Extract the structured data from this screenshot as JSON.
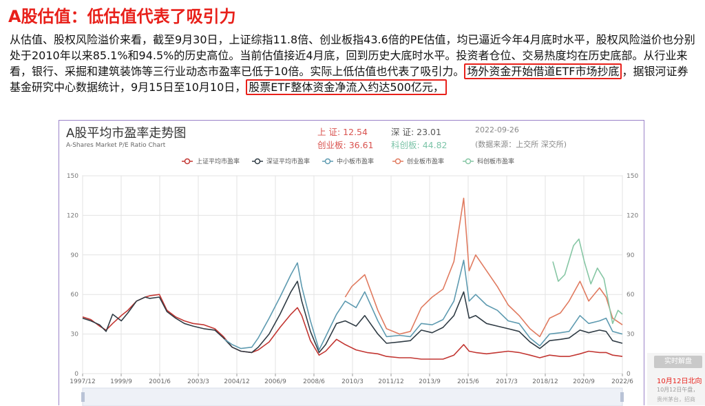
{
  "slide": {
    "title": "A股估值：低估值代表了吸引力",
    "para_a": "从估值、股权风险溢价来看，截至9月30日，上证综指11.8倍、创业板指43.6倍的PE估值，均已逼近今年4月底时水平，股权风险溢价也分别处于2010年以来85.1%和94.5%的历史高位。当前估值接近4月底，回到历史大底时水平。投资者仓位、交易热度均在历史底部。从行业来看，银行、采掘和建筑装饰等三行业动态市盈率已低于10倍。实际上低估值也代表了吸引力。",
    "highlight_1": "场外资金开始借道ETF市场抄底",
    "para_b": "，据银河证券基金研究中心数据统计，9月15日至10月10日，",
    "highlight_2": "股票ETF整体资金净流入约达500亿元，"
  },
  "chart_header": {
    "title": "A股平均市盈率走势图",
    "subtitle": "A-Shares Market P/E Ratio Chart",
    "sh_label": "上 证: ",
    "sh_value": "12.54",
    "sz_label": "深 证: ",
    "sz_value": "23.01",
    "date": "2022-09-26",
    "cyb_label": "创业板: ",
    "cyb_value": "36.61",
    "kcb_label": "科创板: ",
    "kcb_value": "44.82",
    "source": "(数据来源：上交所 深交所)"
  },
  "side_panel": {
    "button": "实时解盘",
    "line1": "10月12日北向",
    "line2": "10月12日午盘，",
    "line3": "贵州茅台，招商"
  },
  "chart_data": {
    "type": "line",
    "title": "A股平均市盈率走势图",
    "subtitle": "A-Shares Market P/E Ratio Chart",
    "ylim": [
      0,
      150
    ],
    "y_ticks": [
      0,
      30,
      60,
      90,
      120,
      150
    ],
    "x_ticks": [
      "1997/12",
      "1999/9",
      "2001/6",
      "2003/3",
      "2004/12",
      "2006/9",
      "2008/6",
      "2010/3",
      "2011/12",
      "2013/9",
      "2015/6",
      "2017/3",
      "2018/12",
      "2020/9",
      "2022/6"
    ],
    "x_range": [
      1997.92,
      2022.75
    ],
    "grid": true,
    "legend_position": "top",
    "series": [
      {
        "name": "上证平均市盈率",
        "color": "#c23531",
        "points": [
          [
            1997.92,
            43
          ],
          [
            1998.3,
            41
          ],
          [
            1998.7,
            36
          ],
          [
            1999.0,
            33
          ],
          [
            1999.3,
            38
          ],
          [
            1999.7,
            44
          ],
          [
            2000.0,
            48
          ],
          [
            2000.4,
            55
          ],
          [
            2000.8,
            58
          ],
          [
            2001.0,
            59
          ],
          [
            2001.45,
            60
          ],
          [
            2001.8,
            48
          ],
          [
            2002.2,
            43
          ],
          [
            2002.6,
            40
          ],
          [
            2003.0,
            38
          ],
          [
            2003.5,
            37
          ],
          [
            2004.0,
            34
          ],
          [
            2004.4,
            28
          ],
          [
            2004.8,
            20
          ],
          [
            2005.2,
            17
          ],
          [
            2005.7,
            16
          ],
          [
            2006.0,
            18
          ],
          [
            2006.5,
            24
          ],
          [
            2007.0,
            35
          ],
          [
            2007.5,
            45
          ],
          [
            2007.8,
            50
          ],
          [
            2008.0,
            44
          ],
          [
            2008.4,
            25
          ],
          [
            2008.8,
            14
          ],
          [
            2009.1,
            17
          ],
          [
            2009.6,
            26
          ],
          [
            2010.0,
            22
          ],
          [
            2010.5,
            18
          ],
          [
            2011.0,
            16
          ],
          [
            2011.5,
            15
          ],
          [
            2011.9,
            13
          ],
          [
            2012.5,
            12
          ],
          [
            2013.0,
            12
          ],
          [
            2013.5,
            11
          ],
          [
            2014.0,
            11
          ],
          [
            2014.5,
            11
          ],
          [
            2015.0,
            14
          ],
          [
            2015.45,
            22
          ],
          [
            2015.7,
            17
          ],
          [
            2016.0,
            16
          ],
          [
            2016.5,
            15
          ],
          [
            2017.0,
            16
          ],
          [
            2017.5,
            17
          ],
          [
            2018.0,
            16
          ],
          [
            2018.5,
            14
          ],
          [
            2018.95,
            12
          ],
          [
            2019.4,
            14
          ],
          [
            2019.9,
            13
          ],
          [
            2020.3,
            13
          ],
          [
            2020.8,
            15
          ],
          [
            2021.2,
            17
          ],
          [
            2021.7,
            16
          ],
          [
            2022.0,
            16
          ],
          [
            2022.3,
            14
          ],
          [
            2022.75,
            13
          ]
        ]
      },
      {
        "name": "深证平均市盈率",
        "color": "#2f3b44",
        "points": [
          [
            1997.92,
            42
          ],
          [
            1998.3,
            40
          ],
          [
            1998.7,
            37
          ],
          [
            1999.0,
            32
          ],
          [
            1999.3,
            45
          ],
          [
            1999.7,
            40
          ],
          [
            2000.0,
            46
          ],
          [
            2000.4,
            55
          ],
          [
            2000.8,
            58
          ],
          [
            2001.0,
            57
          ],
          [
            2001.45,
            58
          ],
          [
            2001.8,
            47
          ],
          [
            2002.2,
            42
          ],
          [
            2002.6,
            38
          ],
          [
            2003.0,
            36
          ],
          [
            2003.5,
            34
          ],
          [
            2004.0,
            33
          ],
          [
            2004.4,
            27
          ],
          [
            2004.8,
            20
          ],
          [
            2005.2,
            17
          ],
          [
            2005.7,
            16
          ],
          [
            2006.0,
            20
          ],
          [
            2006.5,
            30
          ],
          [
            2007.0,
            45
          ],
          [
            2007.5,
            62
          ],
          [
            2007.8,
            70
          ],
          [
            2008.0,
            55
          ],
          [
            2008.4,
            32
          ],
          [
            2008.8,
            16
          ],
          [
            2009.1,
            22
          ],
          [
            2009.6,
            38
          ],
          [
            2010.0,
            40
          ],
          [
            2010.5,
            36
          ],
          [
            2010.9,
            44
          ],
          [
            2011.5,
            30
          ],
          [
            2011.9,
            23
          ],
          [
            2012.5,
            24
          ],
          [
            2013.0,
            25
          ],
          [
            2013.5,
            33
          ],
          [
            2014.0,
            31
          ],
          [
            2014.5,
            35
          ],
          [
            2015.0,
            44
          ],
          [
            2015.45,
            62
          ],
          [
            2015.7,
            42
          ],
          [
            2016.0,
            44
          ],
          [
            2016.5,
            38
          ],
          [
            2017.0,
            36
          ],
          [
            2017.5,
            34
          ],
          [
            2018.0,
            32
          ],
          [
            2018.5,
            24
          ],
          [
            2018.95,
            19
          ],
          [
            2019.4,
            25
          ],
          [
            2019.9,
            26
          ],
          [
            2020.3,
            27
          ],
          [
            2020.8,
            33
          ],
          [
            2021.2,
            31
          ],
          [
            2021.7,
            33
          ],
          [
            2022.0,
            32
          ],
          [
            2022.3,
            25
          ],
          [
            2022.75,
            23
          ]
        ]
      },
      {
        "name": "中小板市盈率",
        "color": "#5d9ab0",
        "points": [
          [
            2004.45,
            26
          ],
          [
            2004.8,
            22
          ],
          [
            2005.2,
            19
          ],
          [
            2005.7,
            20
          ],
          [
            2006.0,
            27
          ],
          [
            2006.5,
            42
          ],
          [
            2007.0,
            58
          ],
          [
            2007.5,
            75
          ],
          [
            2007.8,
            84
          ],
          [
            2008.0,
            66
          ],
          [
            2008.4,
            40
          ],
          [
            2008.8,
            18
          ],
          [
            2009.1,
            28
          ],
          [
            2009.6,
            45
          ],
          [
            2010.0,
            55
          ],
          [
            2010.5,
            50
          ],
          [
            2010.9,
            62
          ],
          [
            2011.5,
            40
          ],
          [
            2011.9,
            28
          ],
          [
            2012.5,
            29
          ],
          [
            2013.0,
            28
          ],
          [
            2013.5,
            38
          ],
          [
            2014.0,
            37
          ],
          [
            2014.5,
            41
          ],
          [
            2015.0,
            55
          ],
          [
            2015.45,
            86
          ],
          [
            2015.7,
            55
          ],
          [
            2016.0,
            60
          ],
          [
            2016.5,
            52
          ],
          [
            2017.0,
            48
          ],
          [
            2017.5,
            40
          ],
          [
            2018.0,
            38
          ],
          [
            2018.5,
            27
          ],
          [
            2018.95,
            21
          ],
          [
            2019.4,
            30
          ],
          [
            2019.9,
            31
          ],
          [
            2020.3,
            32
          ],
          [
            2020.8,
            44
          ],
          [
            2021.2,
            38
          ],
          [
            2021.7,
            40
          ],
          [
            2022.0,
            42
          ],
          [
            2022.3,
            32
          ],
          [
            2022.75,
            30
          ]
        ]
      },
      {
        "name": "创业板市盈率",
        "color": "#e07a5f",
        "points": [
          [
            2010.0,
            58
          ],
          [
            2010.3,
            66
          ],
          [
            2010.9,
            75
          ],
          [
            2011.5,
            48
          ],
          [
            2011.9,
            34
          ],
          [
            2012.5,
            30
          ],
          [
            2013.0,
            32
          ],
          [
            2013.5,
            50
          ],
          [
            2014.0,
            58
          ],
          [
            2014.5,
            64
          ],
          [
            2015.0,
            85
          ],
          [
            2015.45,
            133
          ],
          [
            2015.7,
            78
          ],
          [
            2016.0,
            90
          ],
          [
            2016.5,
            78
          ],
          [
            2017.0,
            66
          ],
          [
            2017.5,
            52
          ],
          [
            2018.0,
            44
          ],
          [
            2018.5,
            34
          ],
          [
            2018.95,
            28
          ],
          [
            2019.4,
            42
          ],
          [
            2019.9,
            46
          ],
          [
            2020.3,
            55
          ],
          [
            2020.8,
            70
          ],
          [
            2021.2,
            55
          ],
          [
            2021.7,
            65
          ],
          [
            2022.0,
            58
          ],
          [
            2022.3,
            42
          ],
          [
            2022.75,
            37
          ]
        ]
      },
      {
        "name": "科创板市盈率",
        "color": "#86c6a4",
        "points": [
          [
            2019.55,
            85
          ],
          [
            2019.8,
            70
          ],
          [
            2020.1,
            75
          ],
          [
            2020.5,
            97
          ],
          [
            2020.75,
            102
          ],
          [
            2021.0,
            85
          ],
          [
            2021.3,
            68
          ],
          [
            2021.6,
            80
          ],
          [
            2021.9,
            72
          ],
          [
            2022.1,
            55
          ],
          [
            2022.3,
            38
          ],
          [
            2022.55,
            48
          ],
          [
            2022.75,
            45
          ]
        ]
      }
    ]
  }
}
